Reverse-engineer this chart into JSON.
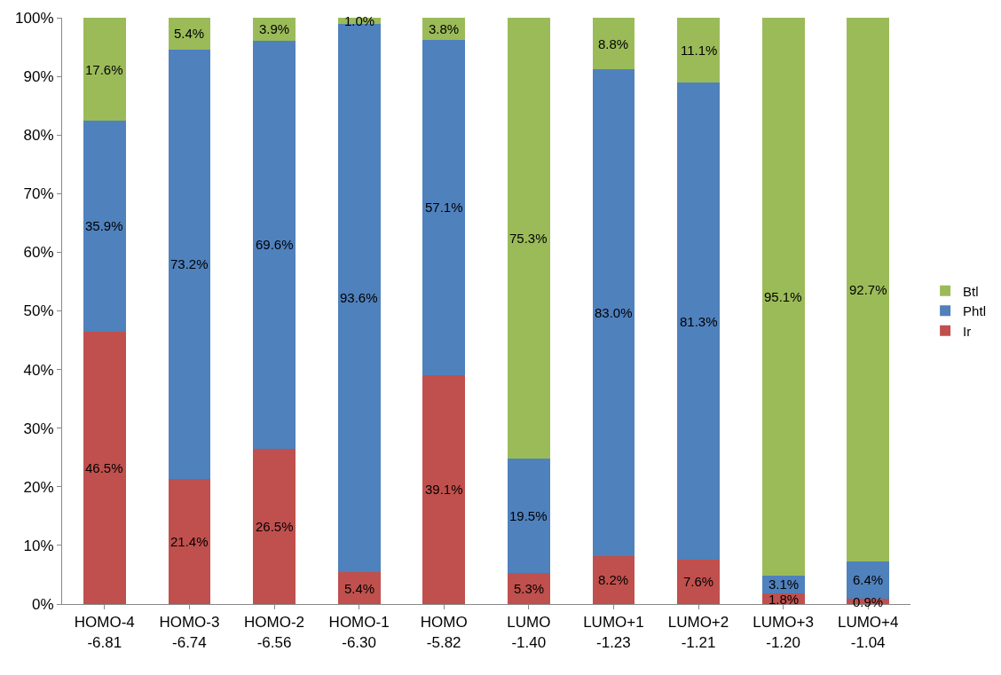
{
  "chart_data": {
    "type": "bar",
    "stacked": true,
    "categories": [
      "HOMO-4\n-6.81",
      "HOMO-3\n-6.74",
      "HOMO-2\n-6.56",
      "HOMO-1\n-6.30",
      "HOMO\n-5.82",
      "LUMO\n-1.40",
      "LUMO+1\n-1.23",
      "LUMO+2\n-1.21",
      "LUMO+3\n-1.20",
      "LUMO+4\n-1.04"
    ],
    "series": [
      {
        "name": "Ir",
        "color": "#c0504d",
        "values": [
          46.5,
          21.4,
          26.5,
          5.4,
          39.1,
          5.3,
          8.2,
          7.6,
          1.8,
          0.9
        ],
        "value_labels": [
          "46.5%",
          "21.4%",
          "26.5%",
          "5.4%",
          "39.1%",
          "5.3%",
          "8.2%",
          "7.6%",
          "1.8%",
          "0.9%"
        ]
      },
      {
        "name": "Phtl",
        "color": "#4f81bd",
        "values": [
          35.9,
          73.2,
          69.6,
          93.6,
          57.1,
          19.5,
          83.0,
          81.3,
          3.1,
          6.4
        ],
        "value_labels": [
          "35.9%",
          "73.2%",
          "69.6%",
          "93.6%",
          "57.1%",
          "19.5%",
          "83.0%",
          "81.3%",
          "3.1%",
          "6.4%"
        ]
      },
      {
        "name": "Btl",
        "color": "#9bbb59",
        "values": [
          17.6,
          5.4,
          3.9,
          1.0,
          3.8,
          75.3,
          8.8,
          11.1,
          95.1,
          92.7
        ],
        "value_labels": [
          "17.6%",
          "5.4%",
          "3.9%",
          "1.0%",
          "3.8%",
          "75.3%",
          "8.8%",
          "11.1%",
          "95.1%",
          "92.7%"
        ]
      }
    ],
    "ylim": [
      0,
      100
    ],
    "yticks": [
      {
        "value": 0,
        "label": "0%"
      },
      {
        "value": 10,
        "label": "10%"
      },
      {
        "value": 20,
        "label": "20%"
      },
      {
        "value": 30,
        "label": "30%"
      },
      {
        "value": 40,
        "label": "40%"
      },
      {
        "value": 50,
        "label": "50%"
      },
      {
        "value": 60,
        "label": "60%"
      },
      {
        "value": 70,
        "label": "70%"
      },
      {
        "value": 80,
        "label": "80%"
      },
      {
        "value": 90,
        "label": "90%"
      },
      {
        "value": 100,
        "label": "100%"
      }
    ],
    "grid": false,
    "legend": "right"
  }
}
